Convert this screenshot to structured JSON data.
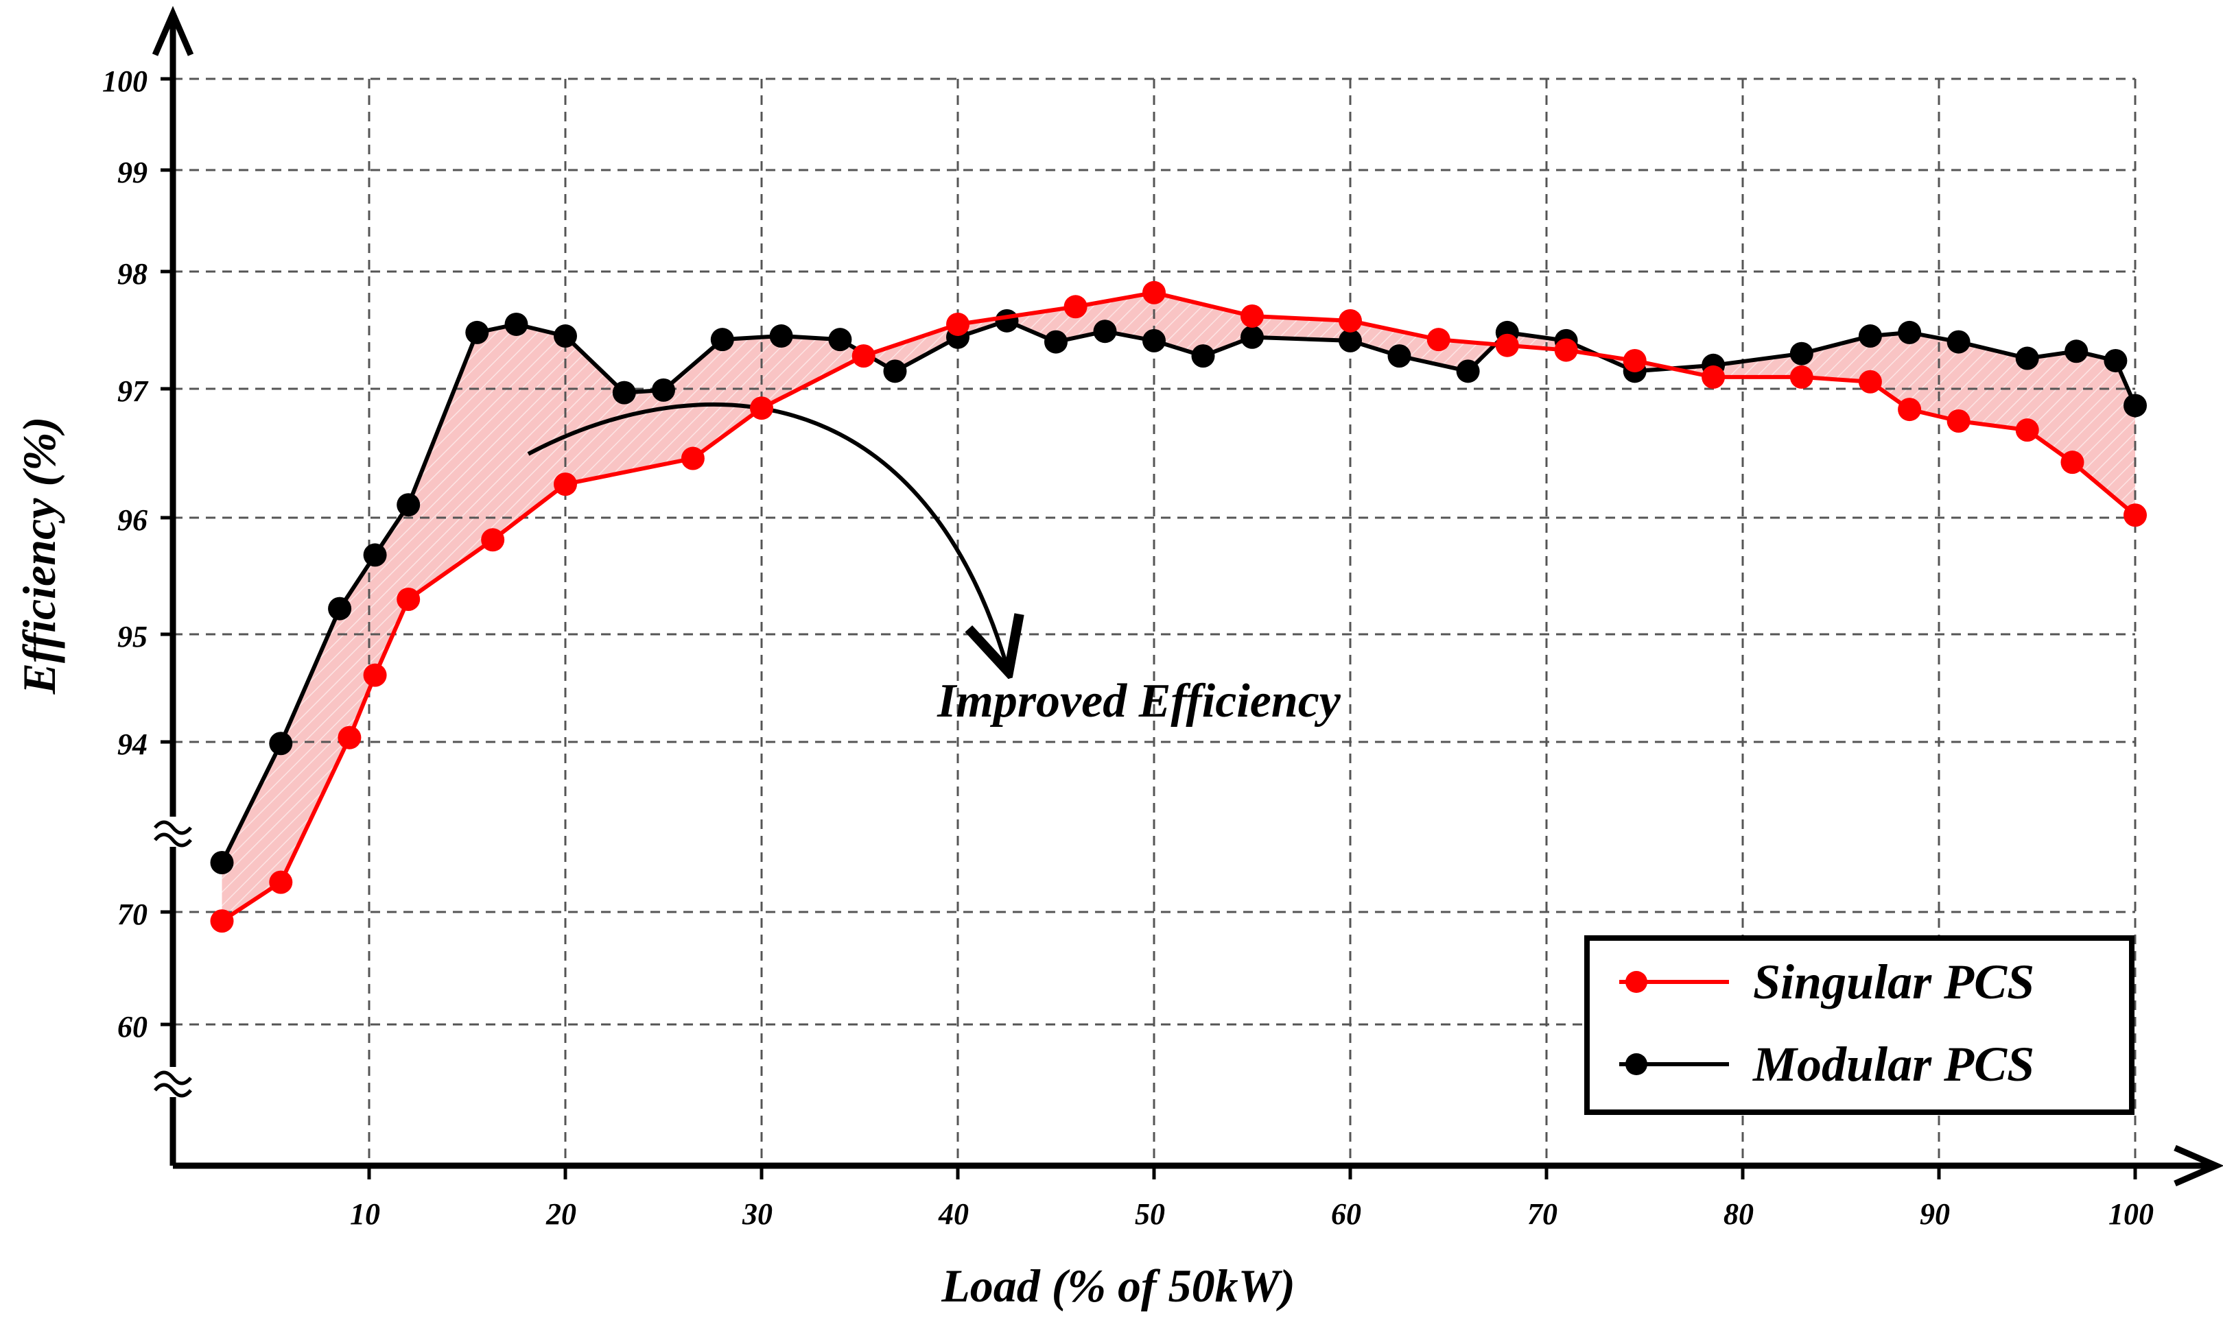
{
  "colors": {
    "singular": "#ff0000",
    "modular": "#000000",
    "fill": "#f7b5b5",
    "grid": "#555555",
    "axis": "#000000"
  },
  "chart_data": {
    "type": "line",
    "title": "",
    "xlabel": "Load (% of 50kW)",
    "ylabel": "Efficiency (%)",
    "xlim": [
      0,
      100
    ],
    "x_ticks": [
      10,
      20,
      30,
      40,
      50,
      60,
      70,
      80,
      90,
      100
    ],
    "x_tick_labels": [
      "10",
      "20",
      "30",
      "40",
      "50",
      "60",
      "70",
      "80",
      "90",
      "100"
    ],
    "y_scale_note": "broken axis: 60 and 70 shown below break, 94-100 above",
    "y_ticks": [
      60,
      70,
      94,
      95,
      96,
      97,
      98,
      99,
      100
    ],
    "y_tick_labels": [
      "60",
      "70",
      "94",
      "95",
      "96",
      "97",
      "98",
      "99",
      "100"
    ],
    "grid": true,
    "legend_position": "bottom-right",
    "annotation": "Improved Efficiency",
    "series": [
      {
        "name": "Singular PCS",
        "color": "#ff0000",
        "x": [
          2.5,
          5.5,
          9,
          10.3,
          12,
          16.3,
          20,
          26.5,
          30,
          35.2,
          40,
          46,
          50,
          55,
          60,
          64.5,
          68,
          71,
          74.5,
          78.5,
          83,
          86.5,
          88.5,
          91,
          94.5,
          96.8,
          100
        ],
        "y": [
          69.2,
          75.0,
          94.04,
          94.62,
          95.3,
          95.81,
          96.26,
          96.46,
          96.85,
          97.28,
          97.55,
          97.7,
          97.82,
          97.62,
          97.58,
          97.42,
          97.37,
          97.33,
          97.24,
          97.1,
          97.1,
          97.06,
          96.84,
          96.75,
          96.68,
          96.43,
          96.02
        ]
      },
      {
        "name": "Modular PCS",
        "color": "#000000",
        "x": [
          2.5,
          5.5,
          8.5,
          10.3,
          12,
          15.5,
          17.5,
          20,
          23,
          25,
          28,
          31,
          34,
          36.8,
          40,
          42.5,
          45,
          47.5,
          50,
          52.5,
          55,
          60,
          62.5,
          66,
          68,
          71,
          74.5,
          78.5,
          83,
          86.5,
          88.5,
          91,
          94.5,
          97,
          99,
          100
        ],
        "y": [
          78.3,
          93.8,
          95.22,
          95.68,
          96.1,
          97.48,
          97.55,
          97.45,
          96.97,
          96.99,
          97.42,
          97.45,
          97.42,
          97.15,
          97.44,
          97.58,
          97.4,
          97.49,
          97.41,
          97.28,
          97.44,
          97.41,
          97.28,
          97.15,
          97.48,
          97.41,
          97.15,
          97.2,
          97.3,
          97.45,
          97.48,
          97.4,
          97.26,
          97.32,
          97.24,
          96.87
        ]
      }
    ]
  }
}
